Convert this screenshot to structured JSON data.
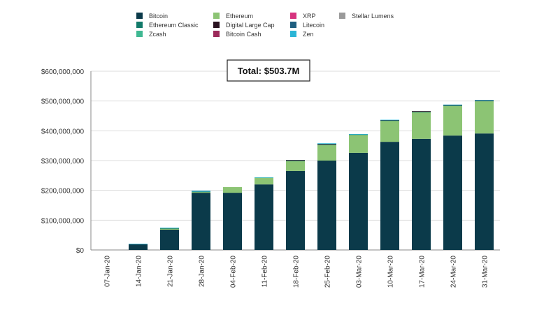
{
  "chart_data": {
    "type": "bar",
    "stacked": true,
    "annotation": "Total: $503.7M",
    "categories": [
      "07-Jan-20",
      "14-Jan-20",
      "21-Jan-20",
      "28-Jan-20",
      "04-Feb-20",
      "11-Feb-20",
      "18-Feb-20",
      "25-Feb-20",
      "03-Mar-20",
      "10-Mar-20",
      "17-Mar-20",
      "24-Mar-20",
      "31-Mar-20"
    ],
    "yticks": [
      "$0",
      "$100,000,000",
      "$200,000,000",
      "$300,000,000",
      "$400,000,000",
      "$500,000,000",
      "$600,000,000"
    ],
    "ylim": [
      0,
      600000000
    ],
    "grid": true,
    "legend_placement": "top",
    "series": [
      {
        "name": "Bitcoin",
        "color": "#0b3a4a",
        "values": [
          0,
          19000000,
          68000000,
          192000000,
          192000000,
          220000000,
          265000000,
          300000000,
          326000000,
          363000000,
          373000000,
          384000000,
          391000000
        ]
      },
      {
        "name": "Ethereum",
        "color": "#8cc474",
        "values": [
          0,
          0,
          4000000,
          3000000,
          19000000,
          23000000,
          33000000,
          52000000,
          61000000,
          71000000,
          89000000,
          99000000,
          108000000
        ]
      },
      {
        "name": "XRP",
        "color": "#d6337e",
        "values": [
          0,
          0,
          0,
          0,
          0,
          0,
          0,
          0,
          0,
          0,
          0,
          0,
          0
        ]
      },
      {
        "name": "Stellar Lumens",
        "color": "#9a9a9a",
        "values": [
          0,
          0,
          0,
          0,
          0,
          0,
          0,
          0,
          0,
          0,
          0,
          0,
          0
        ]
      },
      {
        "name": "Ethereum Classic",
        "color": "#127a6a",
        "values": [
          0,
          0,
          1000000,
          1000000,
          0,
          0,
          2000000,
          2000000,
          1000000,
          1000000,
          2000000,
          2000000,
          2000000
        ]
      },
      {
        "name": "Digital Large Cap",
        "color": "#2a1320",
        "values": [
          0,
          0,
          0,
          0,
          0,
          0,
          2000000,
          2000000,
          0,
          1000000,
          2000000,
          2000000,
          1000000
        ]
      },
      {
        "name": "Litecoin",
        "color": "#1f5f80",
        "values": [
          0,
          0,
          0,
          0,
          0,
          0,
          0,
          0,
          0,
          0,
          0,
          0,
          0
        ]
      },
      {
        "name": "Zcash",
        "color": "#3fb892",
        "values": [
          0,
          0,
          0,
          0,
          0,
          0,
          0,
          0,
          0,
          0,
          0,
          0,
          0
        ]
      },
      {
        "name": "Bitcoin Cash",
        "color": "#9c2a5a",
        "values": [
          0,
          0,
          0,
          0,
          0,
          0,
          0,
          0,
          0,
          0,
          0,
          0,
          0
        ]
      },
      {
        "name": "Zen",
        "color": "#2bb5d6",
        "values": [
          0,
          2000000,
          2000000,
          3000000,
          0,
          1000000,
          0,
          2000000,
          1000000,
          1000000,
          0,
          1000000,
          1700000
        ]
      }
    ]
  }
}
